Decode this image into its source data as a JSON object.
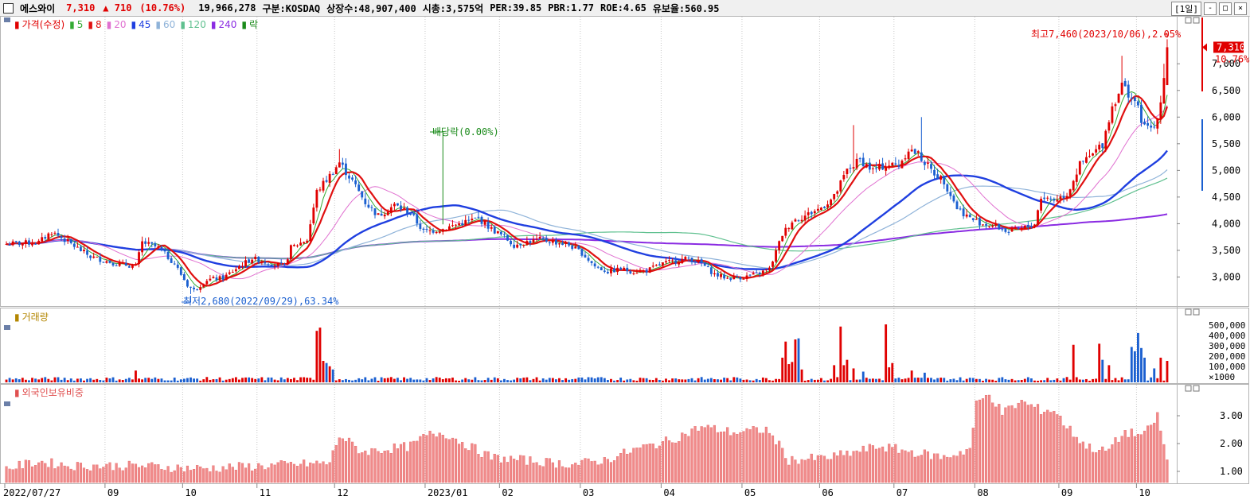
{
  "titlebar": {
    "name": "에스와이",
    "price": "7,310",
    "change": "▲ 710",
    "change_pct": "(10.76%)",
    "stats": [
      "19,966,278",
      "구분:KOSDAQ",
      "상장수:48,907,400",
      "시총:3,575억",
      "PER:39.85",
      "PBR:1.77",
      "ROE:4.65",
      "유보율:560.95"
    ],
    "period": "[1일]",
    "buttons": [
      "-",
      "□",
      "×"
    ]
  },
  "colors": {
    "up": "#e00000",
    "down": "#1a5fd0",
    "ma5": "#33aa33",
    "ma8": "#e01010",
    "ma20": "#e070d0",
    "ma45": "#1f3fe0",
    "ma60": "#8fb3d9",
    "ma120": "#5fc08f",
    "ma240": "#8a2be2",
    "volume_label": "#b38600",
    "foreign_label": "#e05050"
  },
  "legends": {
    "price": [
      {
        "text": "가격(수정)",
        "color": "#e00000"
      },
      {
        "text": "5",
        "color": "#33aa33"
      },
      {
        "text": "8",
        "color": "#e01010"
      },
      {
        "text": "20",
        "color": "#e070d0"
      },
      {
        "text": "45",
        "color": "#1f3fe0"
      },
      {
        "text": "60",
        "color": "#8fb3d9"
      },
      {
        "text": "120",
        "color": "#5fc08f"
      },
      {
        "text": "240",
        "color": "#8a2be2"
      },
      {
        "text": "락",
        "color": "#1a8a1a"
      }
    ],
    "volume": "거래량",
    "foreign": "외국인보유비중"
  },
  "annotations": {
    "high": "최고7,460(2023/10/06),2.05%",
    "low": "최저2,680(2022/09/29),63.34%",
    "dividend": "배당락(0.00%)",
    "last_price": "7,310",
    "last_pct": "10.76%"
  },
  "chart_data": [
    {
      "type": "candlestick",
      "title": "가격(수정)",
      "x_range": [
        "2022/07/27",
        "2023/10/06"
      ],
      "y_ticks": [
        3000,
        3500,
        4000,
        4500,
        5000,
        5500,
        6000,
        6500,
        7000
      ],
      "ylim": [
        2500,
        7600
      ],
      "monthly_close": [
        {
          "x": "2022/07",
          "y": 3600
        },
        {
          "x": "2022/08",
          "y": 3800
        },
        {
          "x": "2022/09",
          "y": 3200
        },
        {
          "x": "2022/10",
          "y": 2950
        },
        {
          "x": "2022/11",
          "y": 3300
        },
        {
          "x": "2022/12",
          "y": 4300
        },
        {
          "x": "2023/01",
          "y": 3900
        },
        {
          "x": "2023/02",
          "y": 3700
        },
        {
          "x": "2023/03",
          "y": 3100
        },
        {
          "x": "2023/04",
          "y": 3200
        },
        {
          "x": "2023/05",
          "y": 3050
        },
        {
          "x": "2023/06",
          "y": 4300
        },
        {
          "x": "2023/07",
          "y": 5100
        },
        {
          "x": "2023/08",
          "y": 4000
        },
        {
          "x": "2023/09",
          "y": 4600
        },
        {
          "x": "2023/10",
          "y": 7310
        }
      ],
      "high": 7460,
      "low": 2680,
      "last": 7310
    },
    {
      "type": "bar",
      "title": "거래량",
      "y_ticks": [
        "500,000",
        "400,000",
        "300,000",
        "200,000",
        "100,000",
        "×1000"
      ],
      "ylim": [
        0,
        600000
      ]
    },
    {
      "type": "bar",
      "title": "외국인보유비중",
      "y_ticks": [
        "3.00",
        "2.00",
        "1.00"
      ],
      "ylim": [
        0.6,
        3.8
      ]
    }
  ],
  "x_axis": {
    "labels": [
      "2022/07/27",
      "09",
      "10",
      "11",
      "12",
      "2023/01",
      "02",
      "03",
      "04",
      "05",
      "06",
      "07",
      "08",
      "09",
      "10"
    ]
  }
}
